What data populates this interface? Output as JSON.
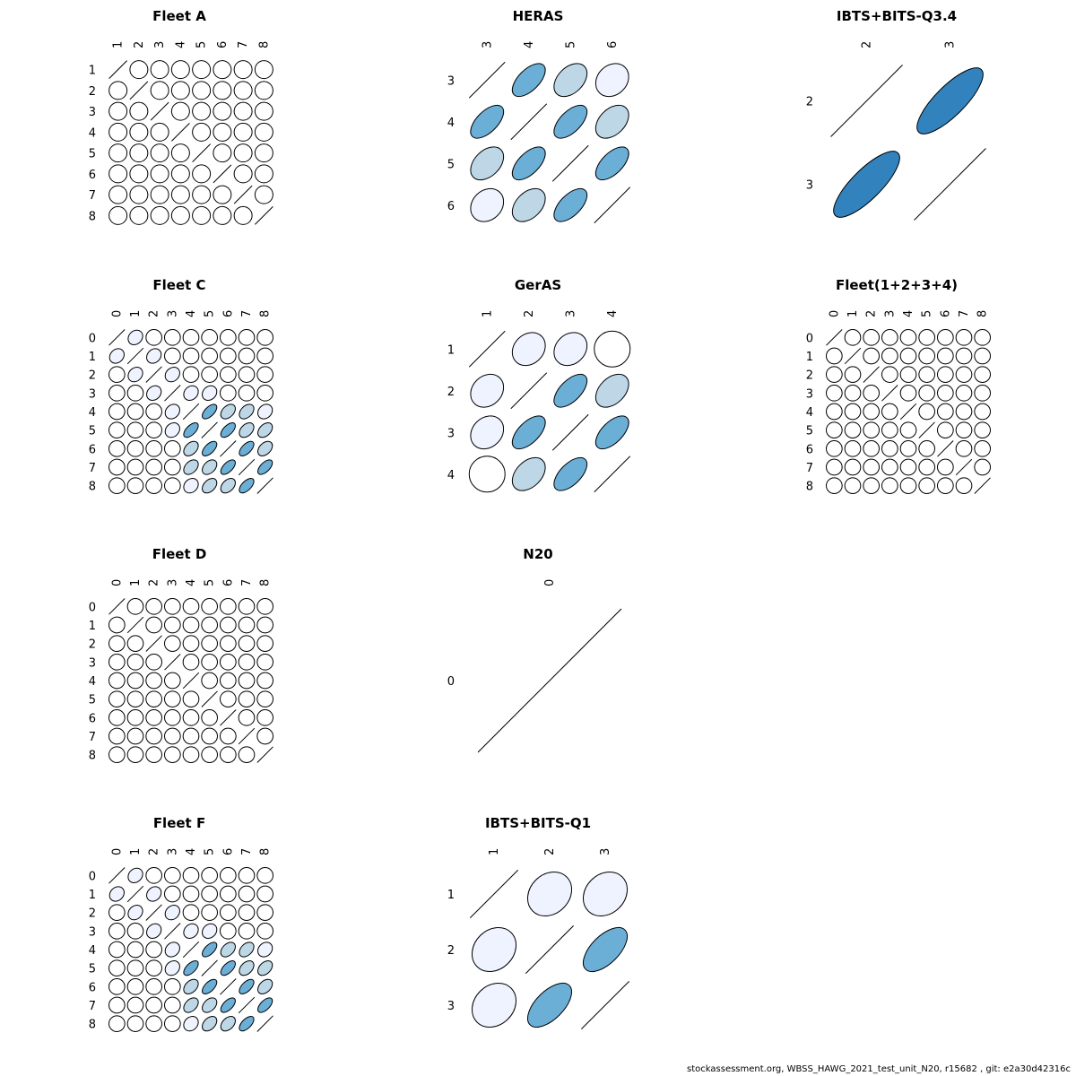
{
  "footer": "stockassessment.org, WBSS_HAWG_2021_test_unit_N20, r15682 , git: e2a30d42316c",
  "colors": {
    "level_0": "#ffffff",
    "level_1": "#eff3ff",
    "level_2": "#bdd7e7",
    "level_3": "#6baed6",
    "level_4": "#3182bd",
    "outline": "#000000"
  },
  "chart_data": [
    {
      "type": "correlation-ellipse-matrix",
      "title": "Fleet A",
      "labels": [
        "1",
        "2",
        "3",
        "4",
        "5",
        "6",
        "7",
        "8"
      ],
      "matrix": [
        [
          1,
          0,
          0,
          0,
          0,
          0,
          0,
          0
        ],
        [
          0,
          1,
          0,
          0,
          0,
          0,
          0,
          0
        ],
        [
          0,
          0,
          1,
          0,
          0,
          0,
          0,
          0
        ],
        [
          0,
          0,
          0,
          1,
          0,
          0,
          0,
          0
        ],
        [
          0,
          0,
          0,
          0,
          1,
          0,
          0,
          0
        ],
        [
          0,
          0,
          0,
          0,
          0,
          1,
          0,
          0
        ],
        [
          0,
          0,
          0,
          0,
          0,
          0,
          1,
          0
        ],
        [
          0,
          0,
          0,
          0,
          0,
          0,
          0,
          1
        ]
      ]
    },
    {
      "type": "correlation-ellipse-matrix",
      "title": "HERAS",
      "labels": [
        "3",
        "4",
        "5",
        "6"
      ],
      "matrix": [
        [
          1,
          0.6,
          0.4,
          0.2
        ],
        [
          0.6,
          1,
          0.6,
          0.4
        ],
        [
          0.4,
          0.6,
          1,
          0.6
        ],
        [
          0.2,
          0.4,
          0.6,
          1
        ]
      ]
    },
    {
      "type": "correlation-ellipse-matrix",
      "title": "IBTS+BITS-Q3.4",
      "labels": [
        "2",
        "3"
      ],
      "matrix": [
        [
          1,
          0.8
        ],
        [
          0.8,
          1
        ]
      ]
    },
    {
      "type": "correlation-ellipse-matrix",
      "title": "Fleet C",
      "labels": [
        "0",
        "1",
        "2",
        "3",
        "4",
        "5",
        "6",
        "7",
        "8"
      ],
      "matrix": [
        [
          1,
          0.2,
          0,
          0,
          0,
          0,
          0,
          0,
          0
        ],
        [
          0.2,
          1,
          0.2,
          0,
          0,
          0,
          0,
          0,
          0
        ],
        [
          0,
          0.2,
          1,
          0.2,
          0,
          0,
          0,
          0,
          0
        ],
        [
          0,
          0,
          0.2,
          1,
          0.2,
          0.2,
          0,
          0,
          0
        ],
        [
          0,
          0,
          0,
          0.2,
          1,
          0.6,
          0.4,
          0.4,
          0.2
        ],
        [
          0,
          0,
          0,
          0.2,
          0.6,
          1,
          0.6,
          0.4,
          0.4
        ],
        [
          0,
          0,
          0,
          0,
          0.4,
          0.6,
          1,
          0.6,
          0.4
        ],
        [
          0,
          0,
          0,
          0,
          0.4,
          0.4,
          0.6,
          1,
          0.6
        ],
        [
          0,
          0,
          0,
          0,
          0.2,
          0.4,
          0.4,
          0.6,
          1
        ]
      ]
    },
    {
      "type": "correlation-ellipse-matrix",
      "title": "GerAS",
      "labels": [
        "1",
        "2",
        "3",
        "4"
      ],
      "matrix": [
        [
          1,
          0.2,
          0.2,
          0
        ],
        [
          0.2,
          1,
          0.6,
          0.4
        ],
        [
          0.2,
          0.6,
          1,
          0.6
        ],
        [
          0,
          0.4,
          0.6,
          1
        ]
      ]
    },
    {
      "type": "correlation-ellipse-matrix",
      "title": "Fleet(1+2+3+4)",
      "labels": [
        "0",
        "1",
        "2",
        "3",
        "4",
        "5",
        "6",
        "7",
        "8"
      ],
      "matrix": [
        [
          1,
          0,
          0,
          0,
          0,
          0,
          0,
          0,
          0
        ],
        [
          0,
          1,
          0,
          0,
          0,
          0,
          0,
          0,
          0
        ],
        [
          0,
          0,
          1,
          0,
          0,
          0,
          0,
          0,
          0
        ],
        [
          0,
          0,
          0,
          1,
          0,
          0,
          0,
          0,
          0
        ],
        [
          0,
          0,
          0,
          0,
          1,
          0,
          0,
          0,
          0
        ],
        [
          0,
          0,
          0,
          0,
          0,
          1,
          0,
          0,
          0
        ],
        [
          0,
          0,
          0,
          0,
          0,
          0,
          1,
          0,
          0
        ],
        [
          0,
          0,
          0,
          0,
          0,
          0,
          0,
          1,
          0
        ],
        [
          0,
          0,
          0,
          0,
          0,
          0,
          0,
          0,
          1
        ]
      ]
    },
    {
      "type": "correlation-ellipse-matrix",
      "title": "Fleet D",
      "labels": [
        "0",
        "1",
        "2",
        "3",
        "4",
        "5",
        "6",
        "7",
        "8"
      ],
      "matrix": [
        [
          1,
          0,
          0,
          0,
          0,
          0,
          0,
          0,
          0
        ],
        [
          0,
          1,
          0,
          0,
          0,
          0,
          0,
          0,
          0
        ],
        [
          0,
          0,
          1,
          0,
          0,
          0,
          0,
          0,
          0
        ],
        [
          0,
          0,
          0,
          1,
          0,
          0,
          0,
          0,
          0
        ],
        [
          0,
          0,
          0,
          0,
          1,
          0,
          0,
          0,
          0
        ],
        [
          0,
          0,
          0,
          0,
          0,
          1,
          0,
          0,
          0
        ],
        [
          0,
          0,
          0,
          0,
          0,
          0,
          1,
          0,
          0
        ],
        [
          0,
          0,
          0,
          0,
          0,
          0,
          0,
          1,
          0
        ],
        [
          0,
          0,
          0,
          0,
          0,
          0,
          0,
          0,
          1
        ]
      ]
    },
    {
      "type": "correlation-ellipse-matrix",
      "title": "N20",
      "labels": [
        "0"
      ],
      "matrix": [
        [
          1
        ]
      ]
    },
    null,
    {
      "type": "correlation-ellipse-matrix",
      "title": "Fleet F",
      "labels": [
        "0",
        "1",
        "2",
        "3",
        "4",
        "5",
        "6",
        "7",
        "8"
      ],
      "matrix": [
        [
          1,
          0.2,
          0,
          0,
          0,
          0,
          0,
          0,
          0
        ],
        [
          0.2,
          1,
          0.2,
          0,
          0,
          0,
          0,
          0,
          0
        ],
        [
          0,
          0.2,
          1,
          0.2,
          0,
          0,
          0,
          0,
          0
        ],
        [
          0,
          0,
          0.2,
          1,
          0.2,
          0.2,
          0,
          0,
          0
        ],
        [
          0,
          0,
          0,
          0.2,
          1,
          0.6,
          0.4,
          0.4,
          0.2
        ],
        [
          0,
          0,
          0,
          0.2,
          0.6,
          1,
          0.6,
          0.4,
          0.4
        ],
        [
          0,
          0,
          0,
          0,
          0.4,
          0.6,
          1,
          0.6,
          0.4
        ],
        [
          0,
          0,
          0,
          0,
          0.4,
          0.4,
          0.6,
          1,
          0.6
        ],
        [
          0,
          0,
          0,
          0,
          0.2,
          0.4,
          0.4,
          0.6,
          1
        ]
      ]
    },
    {
      "type": "correlation-ellipse-matrix",
      "title": "IBTS+BITS-Q1",
      "labels": [
        "1",
        "2",
        "3"
      ],
      "matrix": [
        [
          1,
          0.2,
          0.2
        ],
        [
          0.2,
          1,
          0.6
        ],
        [
          0.2,
          0.6,
          1
        ]
      ]
    }
  ]
}
